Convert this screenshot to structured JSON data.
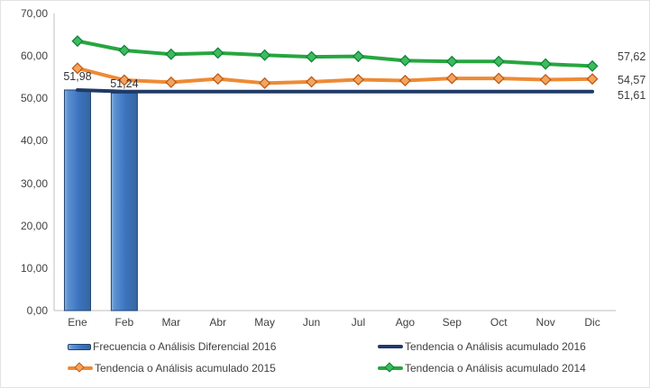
{
  "chart_data": {
    "type": "combo-bar-line",
    "title": "",
    "categories": [
      "Ene",
      "Feb",
      "Mar",
      "Abr",
      "May",
      "Jun",
      "Jul",
      "Ago",
      "Sep",
      "Oct",
      "Nov",
      "Dic"
    ],
    "y_axis": {
      "min": 0,
      "max": 70,
      "step": 10,
      "tick_labels": [
        "0,00",
        "10,00",
        "20,00",
        "30,00",
        "40,00",
        "50,00",
        "60,00",
        "70,00"
      ]
    },
    "grid": false,
    "legend_position": "bottom",
    "axis_color": "#bfbfbf",
    "series": [
      {
        "name": "Frecuencia o Análisis Diferencial 2016",
        "type": "bar",
        "values": [
          51.98,
          51.24,
          null,
          null,
          null,
          null,
          null,
          null,
          null,
          null,
          null,
          null
        ],
        "data_labels": [
          "51,98",
          "51,24"
        ],
        "color": "#3c73bf",
        "border_color": "#1f4470",
        "gradient": [
          "#8cb1df",
          "#5b90d2",
          "#3c73bf",
          "#35669f"
        ]
      },
      {
        "name": "Tendencia o Análisis acumulado 2016",
        "type": "line",
        "marker": "none",
        "values": [
          51.98,
          51.61,
          51.61,
          51.61,
          51.61,
          51.61,
          51.61,
          51.61,
          51.61,
          51.61,
          51.61,
          51.61
        ],
        "end_label": "51,61",
        "color": "#1f3a67"
      },
      {
        "name": "Tendencia o Análisis acumulado 2015",
        "type": "line",
        "marker": "diamond",
        "values": [
          57.1,
          54.3,
          53.8,
          54.6,
          53.6,
          53.9,
          54.4,
          54.2,
          54.7,
          54.7,
          54.4,
          54.57
        ],
        "end_label": "54,57",
        "color": "#ee8a35",
        "marker_fill": "#f4a45f",
        "marker_border": "#be5b17"
      },
      {
        "name": "Tendencia o Análisis acumulado 2014",
        "type": "line",
        "marker": "diamond",
        "values": [
          63.5,
          61.3,
          60.4,
          60.7,
          60.2,
          59.8,
          59.9,
          58.9,
          58.7,
          58.7,
          58.1,
          57.62
        ],
        "end_label": "57,62",
        "color": "#27a640",
        "marker_fill": "#3dbb5d",
        "marker_border": "#11843c"
      }
    ]
  }
}
